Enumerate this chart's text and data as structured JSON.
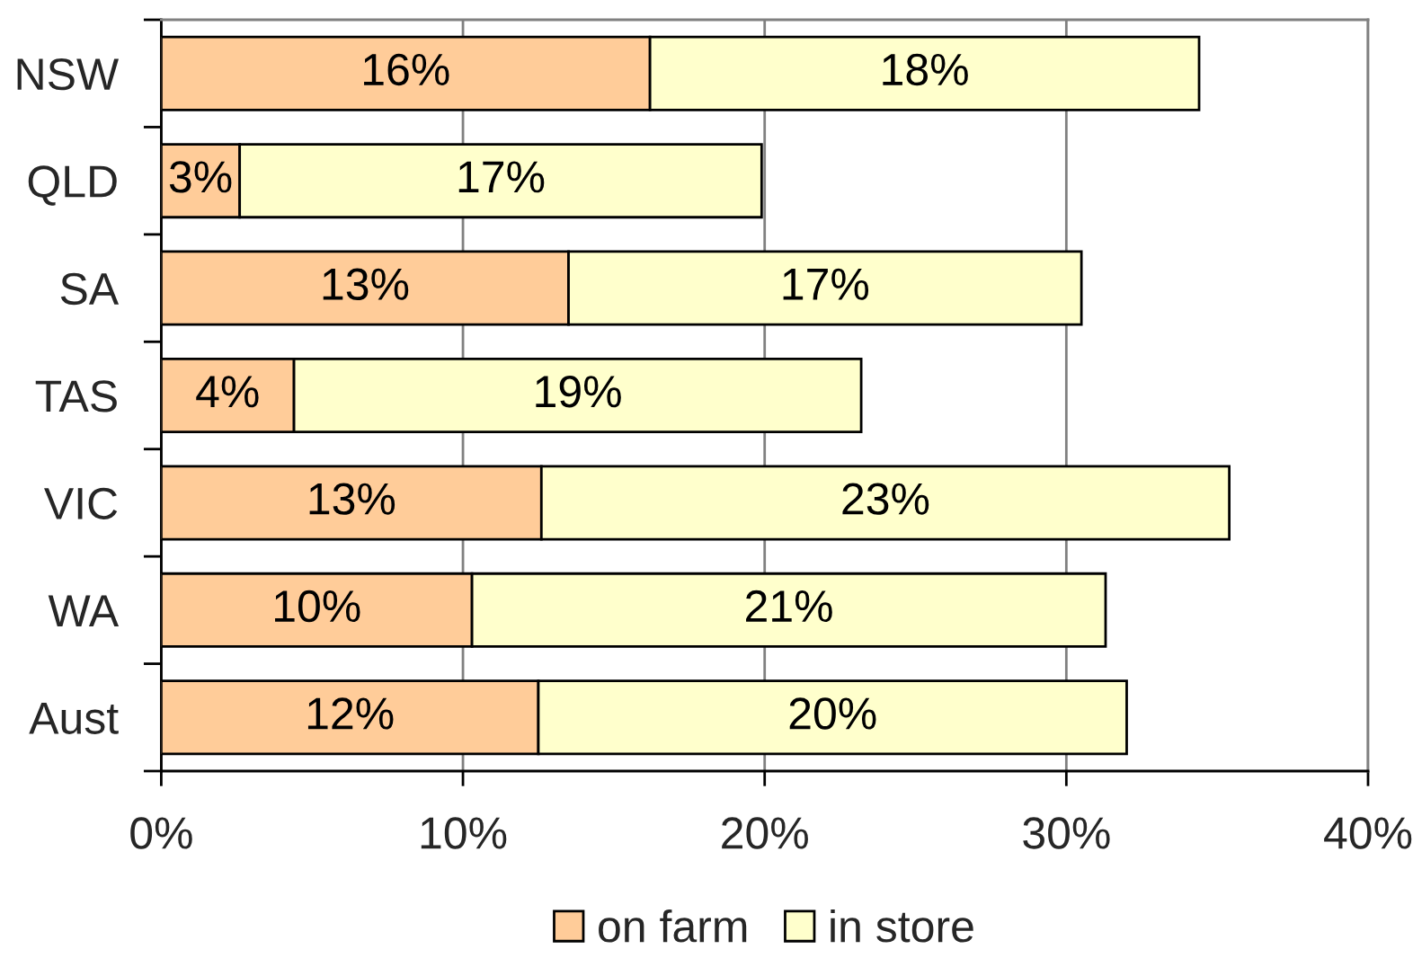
{
  "chart_data": {
    "type": "bar",
    "orientation": "horizontal",
    "stacked": true,
    "categories": [
      "NSW",
      "QLD",
      "SA",
      "TAS",
      "VIC",
      "WA",
      "Aust"
    ],
    "series": [
      {
        "name": "on farm",
        "color": "#ffcc99",
        "values": [
          16.2,
          2.6,
          13.5,
          4.4,
          12.6,
          10.3,
          12.5
        ],
        "value_labels": [
          "16%",
          "3%",
          "13%",
          "4%",
          "13%",
          "10%",
          "12%"
        ]
      },
      {
        "name": "in store",
        "color": "#ffffcc",
        "values": [
          18.2,
          17.3,
          17.0,
          18.8,
          22.8,
          21.0,
          19.5
        ],
        "value_labels": [
          "18%",
          "17%",
          "17%",
          "19%",
          "23%",
          "21%",
          "20%"
        ]
      }
    ],
    "xlim": [
      0,
      40
    ],
    "xticks": [
      {
        "value": 0,
        "label": "0%"
      },
      {
        "value": 10,
        "label": "10%"
      },
      {
        "value": 20,
        "label": "20%"
      },
      {
        "value": 30,
        "label": "30%"
      },
      {
        "value": 40,
        "label": "40%"
      }
    ],
    "grid": "x",
    "legend": "bottom"
  }
}
